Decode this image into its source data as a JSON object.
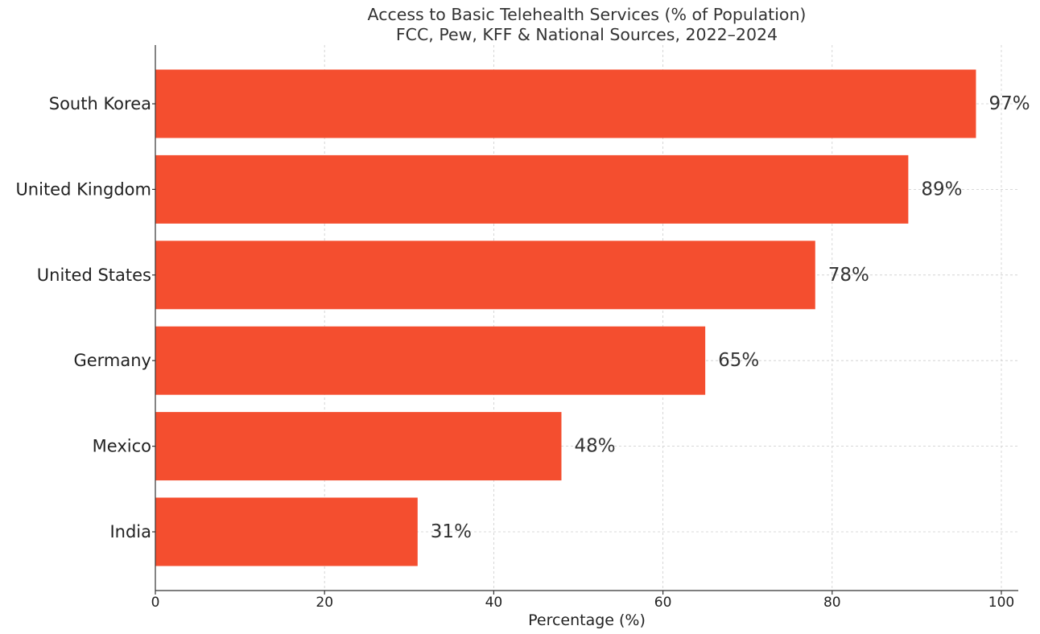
{
  "chart_data": {
    "type": "bar",
    "orientation": "horizontal",
    "title": "Access to Basic Telehealth Services (% of Population)",
    "subtitle": "FCC, Pew, KFF & National Sources, 2022–2024",
    "xlabel": "Percentage (%)",
    "ylabel": "",
    "xlim": [
      0,
      102
    ],
    "x_ticks": [
      0,
      20,
      40,
      60,
      80,
      100
    ],
    "x_tick_labels": [
      "0",
      "20",
      "40",
      "60",
      "80",
      "100"
    ],
    "categories": [
      "South Korea",
      "United Kingdom",
      "United States",
      "Germany",
      "Mexico",
      "India"
    ],
    "values": [
      97,
      89,
      78,
      65,
      48,
      31
    ],
    "data_labels": [
      "97%",
      "89%",
      "78%",
      "65%",
      "48%",
      "31%"
    ],
    "bar_color": "#f44e2f",
    "grid": true,
    "legend": "none"
  }
}
